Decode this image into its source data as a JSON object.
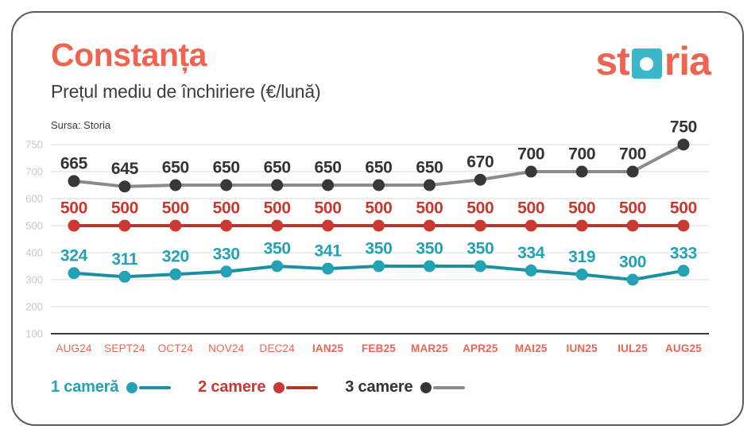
{
  "colors": {
    "coral": "#EE6450",
    "teal": "#23A2B5",
    "teal_line": "#1E8FA0",
    "red": "#C9392F",
    "red_line": "#B2372E",
    "dark": "#373737",
    "gray_line": "#8B8B8B",
    "grid": "#E3E3E3",
    "axis": "#3A3A3A",
    "y_label": "#C7C7C7",
    "logo_square": "#3BB7C9"
  },
  "header": {
    "title": "Constanța",
    "subtitle": "Prețul mediu de închiriere (€/lună)",
    "source": "Sursa: Storia"
  },
  "logo": {
    "prefix": "st",
    "suffix": "ria"
  },
  "chart_data": {
    "type": "line",
    "title": "Constanța",
    "subtitle": "Prețul mediu de închiriere (€/lună)",
    "source": "Sursa: Storia",
    "categories": [
      "AUG24",
      "SEPT24",
      "OCT24",
      "NOV24",
      "DEC24",
      "IAN25",
      "FEB25",
      "MAR25",
      "APR25",
      "MAI25",
      "IUN25",
      "IUL25",
      "AUG25"
    ],
    "bold_categories_from_index": 5,
    "series": [
      {
        "name": "1 cameră",
        "values": [
          324,
          311,
          320,
          330,
          350,
          341,
          350,
          350,
          350,
          334,
          319,
          300,
          333
        ],
        "dot_color": "#23A2B5",
        "line_color": "#1E8FA0",
        "label_color": "#23A2B5"
      },
      {
        "name": "2 camere",
        "values": [
          500,
          500,
          500,
          500,
          500,
          500,
          500,
          500,
          500,
          500,
          500,
          500,
          500
        ],
        "dot_color": "#C9392F",
        "line_color": "#B2372E",
        "label_color": "#C9392F"
      },
      {
        "name": "3 camere",
        "values": [
          665,
          645,
          650,
          650,
          650,
          650,
          650,
          650,
          670,
          700,
          700,
          700,
          750
        ],
        "dot_color": "#373737",
        "line_color": "#8B8B8B",
        "label_color": "#333333"
      }
    ],
    "y_ticks": [
      100,
      200,
      300,
      400,
      500,
      600,
      700,
      750
    ],
    "ylim": [
      100,
      750
    ],
    "grid": true,
    "data_labels": true,
    "legend_position": "bottom-left",
    "x_label_color": "#EE6450"
  }
}
